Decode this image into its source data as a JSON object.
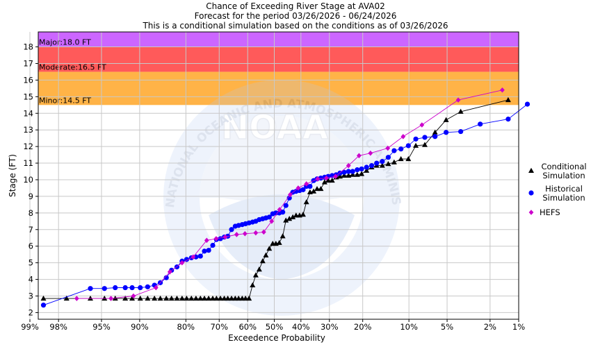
{
  "chart_data": {
    "type": "line",
    "title": "Chance of Exceeding River Stage at AVA02",
    "subtitle_lines": [
      "Forecast for the period 03/26/2026 - 06/24/2026",
      "This is a conditional simulation based on the conditions as of 03/26/2026"
    ],
    "xlabel": "Exceedence Probability",
    "ylabel": "Stage (FT)",
    "x_scale": "probability",
    "x_ticks": [
      {
        "p": 99,
        "label": "99%"
      },
      {
        "p": 98,
        "label": "98%"
      },
      {
        "p": 95,
        "label": "95%"
      },
      {
        "p": 90,
        "label": "90%"
      },
      {
        "p": 80,
        "label": "80%"
      },
      {
        "p": 70,
        "label": "70%"
      },
      {
        "p": 60,
        "label": "60%"
      },
      {
        "p": 50,
        "label": "50%"
      },
      {
        "p": 40,
        "label": "40%"
      },
      {
        "p": 30,
        "label": "30%"
      },
      {
        "p": 20,
        "label": "20%"
      },
      {
        "p": 10,
        "label": "10%"
      },
      {
        "p": 5,
        "label": "5%"
      },
      {
        "p": 2,
        "label": "2%"
      },
      {
        "p": 1,
        "label": "1%"
      }
    ],
    "ylim": [
      1.6,
      18.9
    ],
    "y_ticks": [
      2,
      3,
      4,
      5,
      6,
      7,
      8,
      9,
      10,
      11,
      12,
      13,
      14,
      15,
      16,
      17,
      18
    ],
    "grid": true,
    "legend_position": "right",
    "flood_categories": [
      {
        "name": "Minor",
        "label": "Minor:14.5 FT",
        "from": 14.5,
        "to": 16.5,
        "color": "#ffb347"
      },
      {
        "name": "Moderate",
        "label": "Moderate:16.5 FT",
        "from": 16.5,
        "to": 18.0,
        "color": "#ff5a5a"
      },
      {
        "name": "Major",
        "label": "Major:18.0 FT",
        "from": 18.0,
        "to": 18.9,
        "color": "#cc66ff"
      }
    ],
    "watermark": "NOAA",
    "watermark_ring_text": "NATIONAL OCEANIC AND ATMOSPHERIC ADMINISTRATION · U.S. DEPARTMENT OF COMMERCE",
    "series": [
      {
        "name": "Conditional Simulation",
        "legend_lines": [
          "Conditional",
          "Simulation"
        ],
        "color": "#000000",
        "marker": "triangle",
        "points": [
          [
            98.6,
            2.85
          ],
          [
            97.6,
            2.85
          ],
          [
            96.0,
            2.85
          ],
          [
            94.7,
            2.85
          ],
          [
            93.5,
            2.85
          ],
          [
            92.2,
            2.85
          ],
          [
            91.2,
            2.85
          ],
          [
            89.9,
            2.85
          ],
          [
            88.6,
            2.85
          ],
          [
            87.3,
            2.85
          ],
          [
            86.1,
            2.85
          ],
          [
            84.8,
            2.85
          ],
          [
            83.6,
            2.85
          ],
          [
            82.3,
            2.85
          ],
          [
            81.0,
            2.85
          ],
          [
            79.8,
            2.85
          ],
          [
            78.5,
            2.85
          ],
          [
            77.2,
            2.85
          ],
          [
            75.9,
            2.85
          ],
          [
            74.7,
            2.85
          ],
          [
            73.4,
            2.85
          ],
          [
            72.1,
            2.85
          ],
          [
            70.9,
            2.85
          ],
          [
            69.6,
            2.85
          ],
          [
            68.3,
            2.85
          ],
          [
            67.1,
            2.85
          ],
          [
            65.8,
            2.85
          ],
          [
            64.5,
            2.85
          ],
          [
            63.3,
            2.85
          ],
          [
            62.0,
            2.85
          ],
          [
            60.8,
            2.85
          ],
          [
            59.5,
            2.85
          ],
          [
            58.2,
            3.65
          ],
          [
            57.0,
            4.25
          ],
          [
            55.7,
            4.6
          ],
          [
            54.4,
            5.1
          ],
          [
            53.2,
            5.45
          ],
          [
            51.9,
            5.85
          ],
          [
            50.6,
            6.15
          ],
          [
            49.4,
            6.15
          ],
          [
            48.1,
            6.2
          ],
          [
            46.8,
            6.6
          ],
          [
            45.6,
            7.55
          ],
          [
            44.3,
            7.65
          ],
          [
            43.0,
            7.75
          ],
          [
            41.8,
            7.85
          ],
          [
            40.5,
            7.85
          ],
          [
            39.2,
            7.9
          ],
          [
            38.0,
            8.65
          ],
          [
            36.7,
            9.25
          ],
          [
            35.4,
            9.3
          ],
          [
            34.2,
            9.45
          ],
          [
            32.9,
            9.45
          ],
          [
            31.6,
            9.85
          ],
          [
            30.4,
            9.95
          ],
          [
            29.1,
            9.95
          ],
          [
            27.8,
            10.15
          ],
          [
            26.6,
            10.2
          ],
          [
            25.3,
            10.25
          ],
          [
            24.0,
            10.25
          ],
          [
            22.8,
            10.3
          ],
          [
            21.5,
            10.3
          ],
          [
            20.3,
            10.35
          ],
          [
            19.0,
            10.55
          ],
          [
            17.7,
            10.75
          ],
          [
            16.5,
            10.85
          ],
          [
            15.2,
            10.85
          ],
          [
            13.9,
            10.95
          ],
          [
            12.7,
            11.05
          ],
          [
            11.4,
            11.25
          ],
          [
            10.1,
            11.25
          ],
          [
            8.9,
            12.05
          ],
          [
            7.6,
            12.1
          ],
          [
            6.3,
            12.85
          ],
          [
            5.1,
            13.6
          ],
          [
            3.8,
            14.1
          ],
          [
            1.3,
            14.8
          ]
        ]
      },
      {
        "name": "Historical Simulation",
        "legend_lines": [
          "Historical",
          "Simulation"
        ],
        "color": "#0000ff",
        "marker": "circle",
        "points": [
          [
            98.6,
            2.45
          ],
          [
            96.0,
            3.45
          ],
          [
            94.7,
            3.45
          ],
          [
            93.5,
            3.5
          ],
          [
            92.2,
            3.5
          ],
          [
            91.2,
            3.5
          ],
          [
            89.9,
            3.5
          ],
          [
            88.6,
            3.55
          ],
          [
            87.3,
            3.65
          ],
          [
            86.1,
            3.8
          ],
          [
            84.8,
            4.1
          ],
          [
            83.6,
            4.55
          ],
          [
            82.3,
            4.75
          ],
          [
            81.0,
            5.1
          ],
          [
            79.8,
            5.2
          ],
          [
            78.5,
            5.3
          ],
          [
            77.2,
            5.35
          ],
          [
            75.9,
            5.4
          ],
          [
            74.7,
            5.7
          ],
          [
            73.4,
            5.75
          ],
          [
            72.1,
            6.05
          ],
          [
            70.9,
            6.4
          ],
          [
            69.6,
            6.45
          ],
          [
            68.3,
            6.55
          ],
          [
            67.1,
            6.6
          ],
          [
            65.8,
            7.0
          ],
          [
            64.5,
            7.2
          ],
          [
            63.3,
            7.25
          ],
          [
            62.0,
            7.3
          ],
          [
            60.8,
            7.35
          ],
          [
            59.5,
            7.4
          ],
          [
            58.2,
            7.45
          ],
          [
            57.0,
            7.5
          ],
          [
            55.7,
            7.6
          ],
          [
            54.4,
            7.65
          ],
          [
            53.2,
            7.7
          ],
          [
            51.9,
            7.75
          ],
          [
            50.6,
            7.95
          ],
          [
            49.4,
            8.0
          ],
          [
            48.1,
            8.0
          ],
          [
            46.8,
            8.05
          ],
          [
            45.6,
            8.45
          ],
          [
            44.3,
            8.9
          ],
          [
            43.0,
            9.25
          ],
          [
            41.8,
            9.3
          ],
          [
            40.5,
            9.35
          ],
          [
            39.2,
            9.4
          ],
          [
            38.0,
            9.6
          ],
          [
            36.7,
            9.6
          ],
          [
            35.4,
            9.95
          ],
          [
            34.2,
            10.05
          ],
          [
            32.9,
            10.1
          ],
          [
            31.6,
            10.15
          ],
          [
            30.4,
            10.2
          ],
          [
            29.1,
            10.25
          ],
          [
            27.8,
            10.3
          ],
          [
            26.6,
            10.4
          ],
          [
            25.3,
            10.45
          ],
          [
            24.0,
            10.5
          ],
          [
            22.8,
            10.5
          ],
          [
            21.5,
            10.6
          ],
          [
            20.3,
            10.65
          ],
          [
            19.0,
            10.75
          ],
          [
            17.7,
            10.85
          ],
          [
            16.5,
            11.0
          ],
          [
            15.2,
            11.1
          ],
          [
            13.9,
            11.35
          ],
          [
            12.7,
            11.75
          ],
          [
            11.4,
            11.85
          ],
          [
            10.1,
            12.05
          ],
          [
            8.9,
            12.45
          ],
          [
            7.6,
            12.55
          ],
          [
            6.3,
            12.6
          ],
          [
            5.1,
            12.85
          ],
          [
            3.8,
            12.9
          ],
          [
            2.5,
            13.35
          ],
          [
            1.3,
            13.65
          ],
          [
            0.8,
            14.55
          ]
        ]
      },
      {
        "name": "HEFS",
        "legend_lines": [
          "HEFS"
        ],
        "color": "#cc00cc",
        "marker": "diamond",
        "points": [
          [
            97.0,
            2.85
          ],
          [
            94.0,
            2.85
          ],
          [
            91.0,
            3.0
          ],
          [
            87.0,
            3.5
          ],
          [
            84.0,
            4.45
          ],
          [
            81.0,
            5.0
          ],
          [
            78.0,
            5.35
          ],
          [
            74.0,
            6.35
          ],
          [
            71.0,
            6.45
          ],
          [
            68.0,
            6.55
          ],
          [
            64.0,
            6.7
          ],
          [
            61.0,
            6.75
          ],
          [
            57.0,
            6.8
          ],
          [
            54.0,
            6.85
          ],
          [
            51.0,
            7.5
          ],
          [
            48.0,
            8.2
          ],
          [
            44.0,
            9.1
          ],
          [
            41.0,
            9.5
          ],
          [
            38.0,
            9.75
          ],
          [
            34.0,
            10.05
          ],
          [
            31.0,
            10.1
          ],
          [
            28.0,
            10.2
          ],
          [
            24.0,
            10.85
          ],
          [
            21.0,
            11.45
          ],
          [
            18.0,
            11.6
          ],
          [
            14.0,
            11.9
          ],
          [
            11.0,
            12.6
          ],
          [
            8.0,
            13.3
          ],
          [
            4.0,
            14.8
          ],
          [
            1.5,
            15.4
          ]
        ]
      }
    ]
  }
}
